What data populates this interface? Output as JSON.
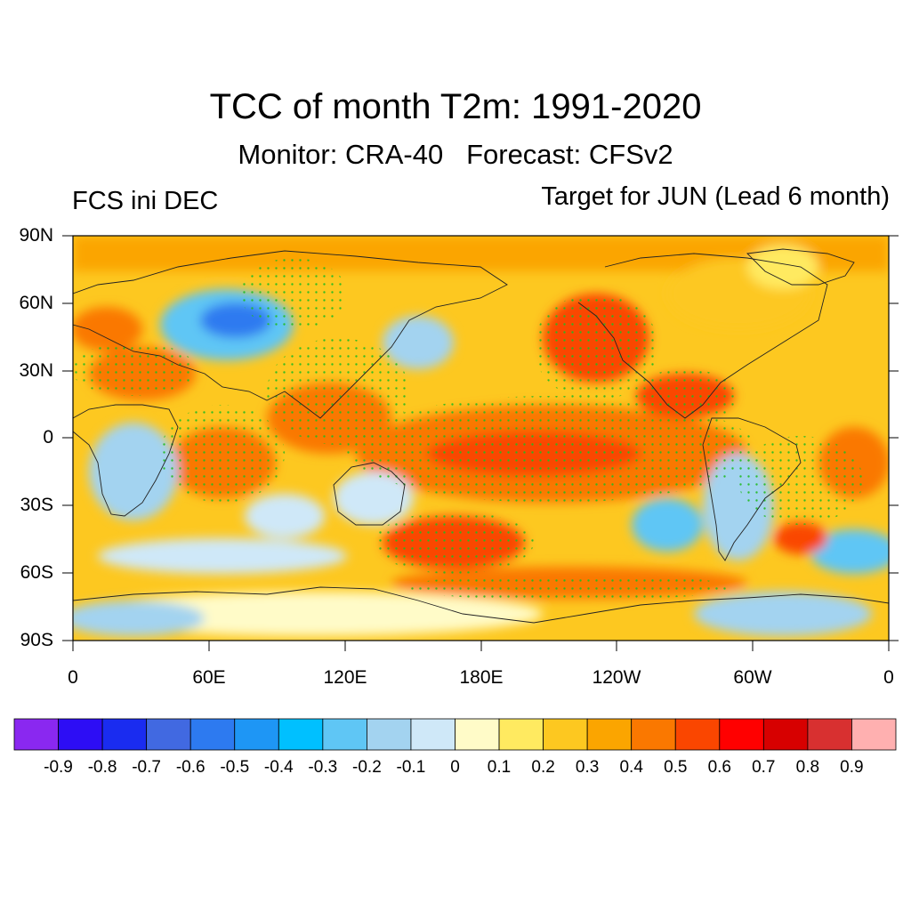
{
  "title": "TCC of month T2m: 1991-2020",
  "subtitle": "Monitor: CRA-40   Forecast: CFSv2",
  "left_label": "FCS ini DEC",
  "right_label": "Target for JUN (Lead 6 month)",
  "map": {
    "lat_labels": [
      "90N",
      "60N",
      "30N",
      "0",
      "30S",
      "60S",
      "90S"
    ],
    "lon_labels": [
      "0",
      "60E",
      "120E",
      "180E",
      "120W",
      "60W",
      "0"
    ],
    "lat_range": [
      -90,
      90
    ],
    "lon_range": [
      0,
      360
    ],
    "projection": "cylindrical-equidistant",
    "field": "temporal correlation coefficient (TCC), stippled where significant",
    "stipple_color": "#22bb22",
    "regions": [
      {
        "name": "tropical-pacific",
        "lon": [
          150,
          280
        ],
        "lat": [
          -25,
          20
        ],
        "value": 0.55
      },
      {
        "name": "north-pacific-east",
        "lon": [
          200,
          235
        ],
        "lat": [
          30,
          58
        ],
        "value": 0.55
      },
      {
        "name": "southwest-pacific",
        "lon": [
          150,
          205
        ],
        "lat": [
          -55,
          -35
        ],
        "value": 0.5
      },
      {
        "name": "central-america",
        "lon": [
          255,
          285
        ],
        "lat": [
          10,
          25
        ],
        "value": 0.6
      },
      {
        "name": "west-siberia",
        "lon": [
          55,
          80
        ],
        "lat": [
          45,
          65
        ],
        "value": -0.45
      },
      {
        "name": "south-atlantic",
        "lon": [
          320,
          360
        ],
        "lat": [
          -60,
          -40
        ],
        "value": -0.3
      },
      {
        "name": "southern-ocean-indian",
        "lon": [
          20,
          120
        ],
        "lat": [
          -60,
          -50
        ],
        "value": -0.2
      },
      {
        "name": "antarctica-east",
        "lon": [
          0,
          200
        ],
        "lat": [
          -90,
          -65
        ],
        "value": 0.1
      }
    ]
  },
  "colorbar": {
    "labels": [
      "-0.9",
      "-0.8",
      "-0.7",
      "-0.6",
      "-0.5",
      "-0.4",
      "-0.3",
      "-0.2",
      "-0.1",
      "0",
      "0.1",
      "0.2",
      "0.3",
      "0.4",
      "0.5",
      "0.6",
      "0.7",
      "0.8",
      "0.9"
    ],
    "colors": [
      "#8a28f0",
      "#2d0df5",
      "#1a2cf0",
      "#4169e1",
      "#2d7af0",
      "#1e96f5",
      "#00c0ff",
      "#5fc6f5",
      "#a3d3f0",
      "#cfe8f8",
      "#fffbc8",
      "#ffea60",
      "#fdc820",
      "#fba500",
      "#fa7800",
      "#fa4600",
      "#ff0000",
      "#d70000",
      "#d83030",
      "#ffb0b0"
    ]
  }
}
